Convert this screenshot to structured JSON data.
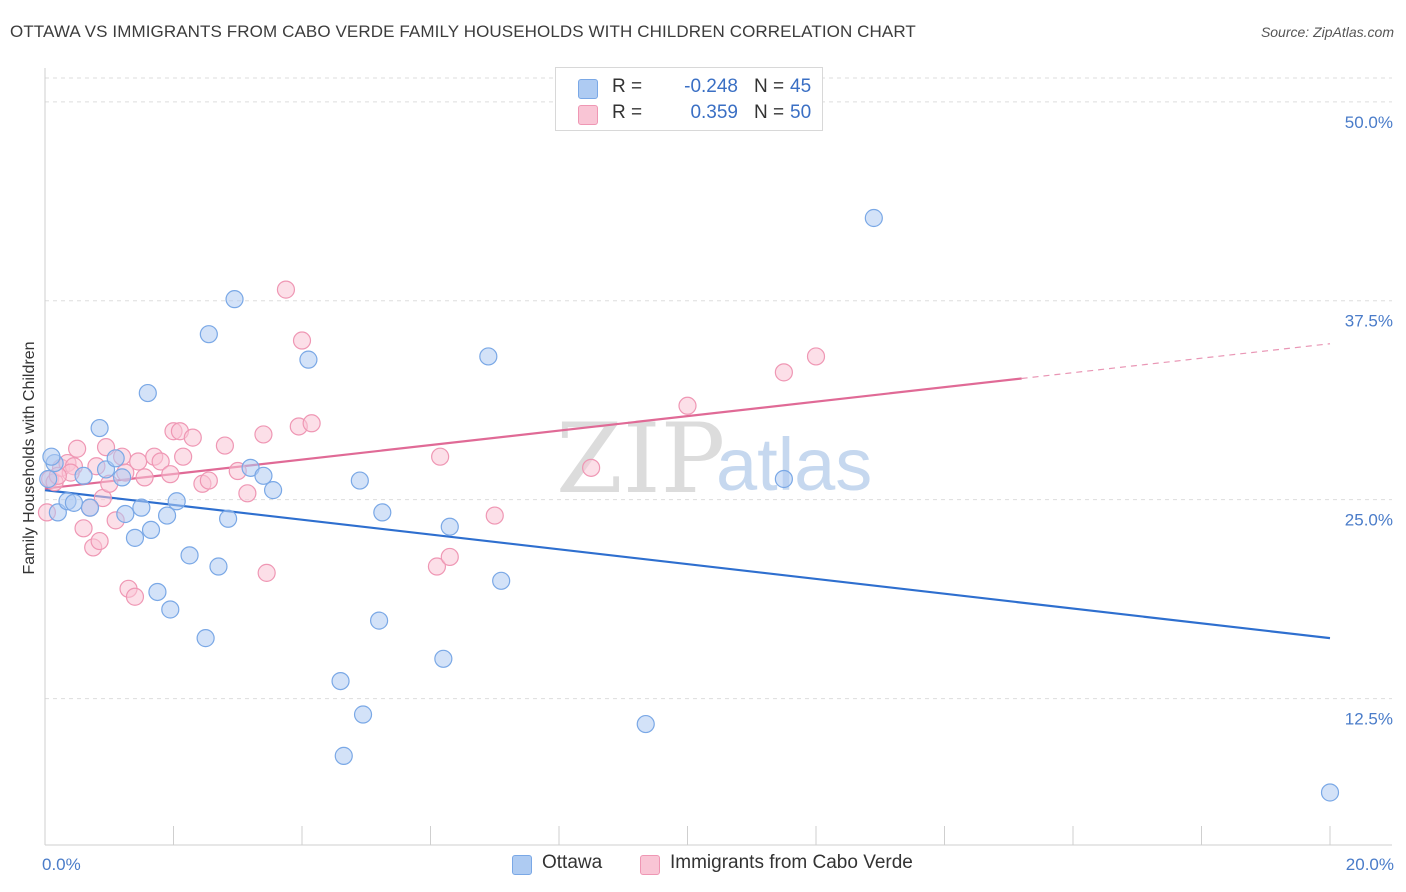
{
  "title": "OTTAWA VS IMMIGRANTS FROM CABO VERDE FAMILY HOUSEHOLDS WITH CHILDREN CORRELATION CHART",
  "source": "Source: ZipAtlas.com",
  "watermark": {
    "zip": "ZIP",
    "atlas": "atlas"
  },
  "legend": {
    "rows": [
      {
        "r_label": "R =",
        "r_value": "-0.248",
        "n_label": "N =",
        "n_value": "45",
        "color": "#aecbf2",
        "border": "#7aa8e6"
      },
      {
        "r_label": "R =",
        "r_value": "0.359",
        "n_label": "N =",
        "n_value": "50",
        "color": "#f9c5d5",
        "border": "#ef97b4"
      }
    ]
  },
  "bottom_legend": [
    {
      "label": "Ottawa",
      "color": "#aecbf2",
      "border": "#7aa8e6"
    },
    {
      "label": "Immigrants from Cabo Verde",
      "color": "#f9c5d5",
      "border": "#ef97b4"
    }
  ],
  "chart_data": {
    "type": "scatter",
    "title": "OTTAWA VS IMMIGRANTS FROM CABO VERDE FAMILY HOUSEHOLDS WITH CHILDREN CORRELATION CHART",
    "xlabel": "",
    "ylabel": "Family Households with Children",
    "xlim": [
      0,
      20
    ],
    "ylim": [
      3.3,
      52
    ],
    "x_tick_labels": [
      "0.0%",
      "20.0%"
    ],
    "y_ticks": [
      12.5,
      25.0,
      37.5,
      50.0
    ],
    "y_tick_labels": [
      "12.5%",
      "25.0%",
      "37.5%",
      "50.0%"
    ],
    "grid": true,
    "series": [
      {
        "name": "Ottawa",
        "color": "#7aa8e6",
        "fill": "#aecbf2",
        "line_color": "#2e6fcf",
        "trend": {
          "x0": 0,
          "y0": 25.6,
          "x1": 20,
          "y1": 16.3,
          "solid_until": 20
        },
        "points": [
          [
            0.05,
            26.3
          ],
          [
            0.15,
            27.3
          ],
          [
            0.2,
            24.2
          ],
          [
            0.35,
            24.9
          ],
          [
            0.45,
            24.8
          ],
          [
            0.6,
            26.5
          ],
          [
            0.7,
            24.5
          ],
          [
            0.85,
            29.5
          ],
          [
            0.95,
            26.9
          ],
          [
            1.1,
            27.6
          ],
          [
            1.2,
            26.4
          ],
          [
            1.25,
            24.1
          ],
          [
            1.4,
            22.6
          ],
          [
            1.5,
            24.5
          ],
          [
            1.6,
            31.7
          ],
          [
            1.65,
            23.1
          ],
          [
            1.75,
            19.2
          ],
          [
            1.9,
            24.0
          ],
          [
            1.95,
            18.1
          ],
          [
            2.05,
            24.9
          ],
          [
            2.25,
            21.5
          ],
          [
            2.5,
            16.3
          ],
          [
            2.55,
            35.4
          ],
          [
            2.7,
            20.8
          ],
          [
            2.85,
            23.8
          ],
          [
            2.95,
            37.6
          ],
          [
            3.2,
            27.0
          ],
          [
            3.4,
            26.5
          ],
          [
            3.55,
            25.6
          ],
          [
            4.1,
            33.8
          ],
          [
            4.6,
            13.6
          ],
          [
            4.65,
            8.9
          ],
          [
            4.9,
            26.2
          ],
          [
            4.95,
            11.5
          ],
          [
            5.2,
            17.4
          ],
          [
            5.25,
            24.2
          ],
          [
            6.2,
            15.0
          ],
          [
            6.3,
            23.3
          ],
          [
            6.9,
            34.0
          ],
          [
            7.1,
            19.9
          ],
          [
            9.35,
            10.9
          ],
          [
            11.5,
            26.3
          ],
          [
            12.9,
            42.7
          ],
          [
            20.0,
            6.6
          ],
          [
            0.1,
            27.7
          ]
        ]
      },
      {
        "name": "Immigrants from Cabo Verde",
        "color": "#ef97b4",
        "fill": "#f9c5d5",
        "line_color": "#e06a96",
        "trend": {
          "x0": 0,
          "y0": 25.7,
          "x1": 20,
          "y1": 34.8,
          "solid_until": 15.2
        },
        "points": [
          [
            0.03,
            24.2
          ],
          [
            0.08,
            26.3
          ],
          [
            0.15,
            26.1
          ],
          [
            0.25,
            27.0
          ],
          [
            0.35,
            27.3
          ],
          [
            0.45,
            27.1
          ],
          [
            0.5,
            28.2
          ],
          [
            0.6,
            23.2
          ],
          [
            0.7,
            24.5
          ],
          [
            0.75,
            22.0
          ],
          [
            0.8,
            27.1
          ],
          [
            0.85,
            22.4
          ],
          [
            0.9,
            25.1
          ],
          [
            0.95,
            28.3
          ],
          [
            1.0,
            26.0
          ],
          [
            1.1,
            23.7
          ],
          [
            1.2,
            27.7
          ],
          [
            1.25,
            26.7
          ],
          [
            1.3,
            19.4
          ],
          [
            1.4,
            18.9
          ],
          [
            1.45,
            27.4
          ],
          [
            1.55,
            26.4
          ],
          [
            1.7,
            27.7
          ],
          [
            1.8,
            27.4
          ],
          [
            1.95,
            26.6
          ],
          [
            2.0,
            29.3
          ],
          [
            2.1,
            29.3
          ],
          [
            2.15,
            27.7
          ],
          [
            2.3,
            28.9
          ],
          [
            2.45,
            26.0
          ],
          [
            2.55,
            26.2
          ],
          [
            2.8,
            28.4
          ],
          [
            3.0,
            26.8
          ],
          [
            3.15,
            25.4
          ],
          [
            3.4,
            29.1
          ],
          [
            3.45,
            20.4
          ],
          [
            3.75,
            38.2
          ],
          [
            3.95,
            29.6
          ],
          [
            4.0,
            35.0
          ],
          [
            4.15,
            29.8
          ],
          [
            6.1,
            20.8
          ],
          [
            6.15,
            27.7
          ],
          [
            6.3,
            21.4
          ],
          [
            7.0,
            24.0
          ],
          [
            8.5,
            27.0
          ],
          [
            10.0,
            30.9
          ],
          [
            11.5,
            33.0
          ],
          [
            12.0,
            34.0
          ],
          [
            0.4,
            26.7
          ],
          [
            0.2,
            26.5
          ]
        ]
      }
    ]
  }
}
